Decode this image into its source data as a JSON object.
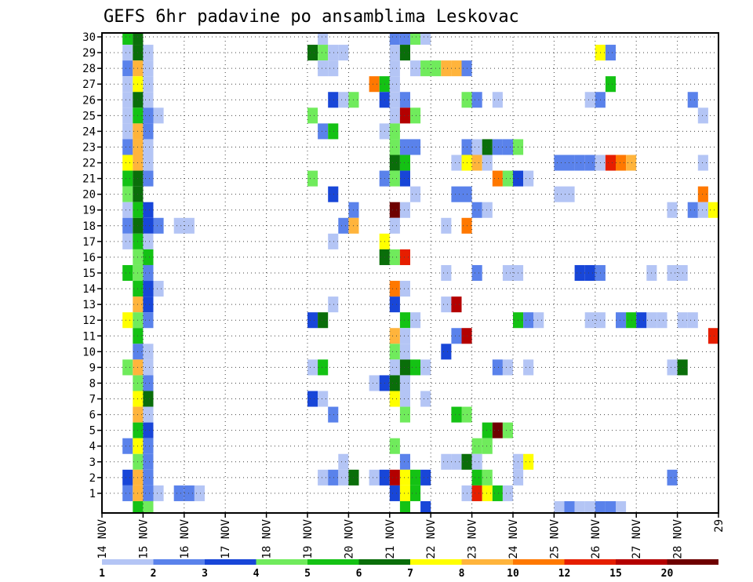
{
  "chart_data": {
    "type": "heatmap",
    "title": "GEFS 6hr padavine po ansamblima Leskovac",
    "xlabel": "",
    "ylabel": "",
    "x_tick_labels": [
      "14 NOV",
      "15 NOV",
      "16 NOV",
      "17 NOV",
      "18 NOV",
      "19 NOV",
      "20 NOV",
      "21 NOV",
      "22 NOV",
      "23 NOV",
      "24 NOV",
      "25 NOV",
      "26 NOV",
      "27 NOV",
      "28 NOV",
      "29"
    ],
    "y_tick_labels": [
      "1",
      "2",
      "3",
      "4",
      "5",
      "6",
      "7",
      "8",
      "9",
      "10",
      "11",
      "12",
      "13",
      "14",
      "15",
      "16",
      "17",
      "18",
      "19",
      "20",
      "21",
      "22",
      "23",
      "24",
      "25",
      "26",
      "27",
      "28",
      "29",
      "30"
    ],
    "x_range_days": [
      14,
      29
    ],
    "x_step_days": 0.25,
    "y_range": [
      0,
      30
    ],
    "grid": "dotted",
    "legend": {
      "position": "bottom",
      "labels": [
        "1",
        "2",
        "3",
        "4",
        "5",
        "6",
        "7",
        "8",
        "10",
        "12",
        "15",
        "20"
      ],
      "colors": [
        "#b4c5f5",
        "#5a82eb",
        "#1846d8",
        "#70eb5c",
        "#14c214",
        "#0a6e0a",
        "#ffff00",
        "#ffb43c",
        "#ff7800",
        "#e61e00",
        "#b40000",
        "#6e0000"
      ]
    },
    "cells_note": "each cell: [day (14-29, step 0.25), member (0-30), colour class index 0-11]",
    "cells": [
      [
        14.5,
        30,
        4
      ],
      [
        14.75,
        30,
        5
      ],
      [
        19.25,
        30,
        0
      ],
      [
        21,
        30,
        1
      ],
      [
        21.25,
        30,
        1
      ],
      [
        21.5,
        30,
        3
      ],
      [
        21.75,
        30,
        0
      ],
      [
        14.5,
        29,
        0
      ],
      [
        14.75,
        29,
        5
      ],
      [
        15,
        29,
        0
      ],
      [
        19,
        29,
        5
      ],
      [
        19.25,
        29,
        3
      ],
      [
        19.5,
        29,
        0
      ],
      [
        19.75,
        29,
        0
      ],
      [
        21,
        29,
        0
      ],
      [
        21.25,
        29,
        5
      ],
      [
        26,
        29,
        6
      ],
      [
        26.25,
        29,
        1
      ],
      [
        29,
        29,
        2
      ],
      [
        14.5,
        28,
        1
      ],
      [
        14.75,
        28,
        7
      ],
      [
        15,
        28,
        0
      ],
      [
        19.25,
        28,
        0
      ],
      [
        19.5,
        28,
        0
      ],
      [
        21,
        28,
        0
      ],
      [
        21.5,
        28,
        0
      ],
      [
        21.75,
        28,
        3
      ],
      [
        22,
        28,
        3
      ],
      [
        22.25,
        28,
        7
      ],
      [
        22.5,
        28,
        7
      ],
      [
        22.75,
        28,
        1
      ],
      [
        14.5,
        27,
        0
      ],
      [
        14.75,
        27,
        6
      ],
      [
        15,
        27,
        0
      ],
      [
        20.5,
        27,
        8
      ],
      [
        20.75,
        27,
        4
      ],
      [
        21,
        27,
        0
      ],
      [
        26.25,
        27,
        4
      ],
      [
        14.5,
        26,
        0
      ],
      [
        14.75,
        26,
        5
      ],
      [
        15,
        26,
        0
      ],
      [
        19.5,
        26,
        2
      ],
      [
        19.75,
        26,
        0
      ],
      [
        20,
        26,
        3
      ],
      [
        20.75,
        26,
        2
      ],
      [
        21,
        26,
        0
      ],
      [
        21.25,
        26,
        1
      ],
      [
        22.75,
        26,
        3
      ],
      [
        23,
        26,
        1
      ],
      [
        23.5,
        26,
        0
      ],
      [
        25.75,
        26,
        0
      ],
      [
        26,
        26,
        1
      ],
      [
        28.25,
        26,
        1
      ],
      [
        14.5,
        25,
        0
      ],
      [
        14.75,
        25,
        4
      ],
      [
        15,
        25,
        1
      ],
      [
        15.25,
        25,
        0
      ],
      [
        19,
        25,
        3
      ],
      [
        21,
        25,
        0
      ],
      [
        21.25,
        25,
        10
      ],
      [
        21.5,
        25,
        3
      ],
      [
        28.5,
        25,
        0
      ],
      [
        14.5,
        24,
        0
      ],
      [
        14.75,
        24,
        7
      ],
      [
        15,
        24,
        1
      ],
      [
        19.25,
        24,
        1
      ],
      [
        19.5,
        24,
        4
      ],
      [
        20.75,
        24,
        0
      ],
      [
        21,
        24,
        3
      ],
      [
        14.5,
        23,
        1
      ],
      [
        14.75,
        23,
        7
      ],
      [
        15,
        23,
        0
      ],
      [
        21,
        23,
        3
      ],
      [
        21.25,
        23,
        1
      ],
      [
        21.5,
        23,
        1
      ],
      [
        22.75,
        23,
        1
      ],
      [
        23,
        23,
        0
      ],
      [
        23.25,
        23,
        5
      ],
      [
        23.5,
        23,
        1
      ],
      [
        23.75,
        23,
        1
      ],
      [
        24,
        23,
        3
      ],
      [
        14.5,
        22,
        6
      ],
      [
        14.75,
        22,
        7
      ],
      [
        15,
        22,
        0
      ],
      [
        21,
        22,
        5
      ],
      [
        21.25,
        22,
        4
      ],
      [
        22.5,
        22,
        0
      ],
      [
        22.75,
        22,
        6
      ],
      [
        23,
        22,
        7
      ],
      [
        23.25,
        22,
        0
      ],
      [
        25,
        22,
        1
      ],
      [
        25.25,
        22,
        1
      ],
      [
        25.5,
        22,
        1
      ],
      [
        25.75,
        22,
        1
      ],
      [
        26,
        22,
        0
      ],
      [
        26.25,
        22,
        9
      ],
      [
        26.5,
        22,
        8
      ],
      [
        26.75,
        22,
        7
      ],
      [
        28.5,
        22,
        0
      ],
      [
        14.5,
        21,
        4
      ],
      [
        14.75,
        21,
        5
      ],
      [
        15,
        21,
        1
      ],
      [
        19,
        21,
        3
      ],
      [
        20.75,
        21,
        1
      ],
      [
        21,
        21,
        3
      ],
      [
        21.25,
        21,
        2
      ],
      [
        23.5,
        21,
        8
      ],
      [
        23.75,
        21,
        3
      ],
      [
        24,
        21,
        2
      ],
      [
        24.25,
        21,
        0
      ],
      [
        14.5,
        20,
        3
      ],
      [
        14.75,
        20,
        5
      ],
      [
        19.5,
        20,
        2
      ],
      [
        21.5,
        20,
        0
      ],
      [
        22.5,
        20,
        1
      ],
      [
        22.75,
        20,
        1
      ],
      [
        25,
        20,
        0
      ],
      [
        25.25,
        20,
        0
      ],
      [
        28.5,
        20,
        8
      ],
      [
        14.5,
        19,
        0
      ],
      [
        14.75,
        19,
        4
      ],
      [
        15,
        19,
        2
      ],
      [
        20,
        19,
        1
      ],
      [
        21,
        19,
        11
      ],
      [
        21.25,
        19,
        0
      ],
      [
        23,
        19,
        1
      ],
      [
        23.25,
        19,
        0
      ],
      [
        27.75,
        19,
        0
      ],
      [
        28.25,
        19,
        1
      ],
      [
        28.5,
        19,
        0
      ],
      [
        28.75,
        19,
        6
      ],
      [
        14.5,
        18,
        1
      ],
      [
        14.75,
        18,
        5
      ],
      [
        15,
        18,
        2
      ],
      [
        15.25,
        18,
        1
      ],
      [
        15.75,
        18,
        0
      ],
      [
        16,
        18,
        0
      ],
      [
        19.75,
        18,
        1
      ],
      [
        20,
        18,
        7
      ],
      [
        21,
        18,
        0
      ],
      [
        22.25,
        18,
        0
      ],
      [
        22.75,
        18,
        8
      ],
      [
        14.5,
        17,
        0
      ],
      [
        14.75,
        17,
        4
      ],
      [
        15,
        17,
        0
      ],
      [
        19.5,
        17,
        0
      ],
      [
        20.75,
        17,
        6
      ],
      [
        14.75,
        16,
        3
      ],
      [
        15,
        16,
        4
      ],
      [
        20.75,
        16,
        5
      ],
      [
        21,
        16,
        3
      ],
      [
        21.25,
        16,
        9
      ],
      [
        14.5,
        15,
        4
      ],
      [
        14.75,
        15,
        3
      ],
      [
        15,
        15,
        1
      ],
      [
        22.25,
        15,
        0
      ],
      [
        23,
        15,
        1
      ],
      [
        23.75,
        15,
        0
      ],
      [
        24,
        15,
        0
      ],
      [
        25.5,
        15,
        2
      ],
      [
        25.75,
        15,
        2
      ],
      [
        26,
        15,
        1
      ],
      [
        27.25,
        15,
        0
      ],
      [
        27.75,
        15,
        0
      ],
      [
        28,
        15,
        0
      ],
      [
        14.75,
        14,
        4
      ],
      [
        15,
        14,
        2
      ],
      [
        15.25,
        14,
        0
      ],
      [
        21,
        14,
        8
      ],
      [
        21.25,
        14,
        0
      ],
      [
        14.75,
        13,
        7
      ],
      [
        15,
        13,
        2
      ],
      [
        19.5,
        13,
        0
      ],
      [
        21,
        13,
        2
      ],
      [
        22.25,
        13,
        0
      ],
      [
        22.5,
        13,
        10
      ],
      [
        14.5,
        12,
        6
      ],
      [
        14.75,
        12,
        3
      ],
      [
        15,
        12,
        1
      ],
      [
        19,
        12,
        2
      ],
      [
        19.25,
        12,
        5
      ],
      [
        21.25,
        12,
        4
      ],
      [
        21.5,
        12,
        0
      ],
      [
        24,
        12,
        4
      ],
      [
        24.25,
        12,
        1
      ],
      [
        24.5,
        12,
        0
      ],
      [
        25.75,
        12,
        0
      ],
      [
        26,
        12,
        0
      ],
      [
        26.5,
        12,
        1
      ],
      [
        26.75,
        12,
        4
      ],
      [
        27,
        12,
        2
      ],
      [
        27.25,
        12,
        0
      ],
      [
        27.5,
        12,
        0
      ],
      [
        28,
        12,
        0
      ],
      [
        28.25,
        12,
        0
      ],
      [
        14.75,
        11,
        4
      ],
      [
        21,
        11,
        7
      ],
      [
        21.25,
        11,
        0
      ],
      [
        22.5,
        11,
        1
      ],
      [
        22.75,
        11,
        10
      ],
      [
        28.75,
        11,
        9
      ],
      [
        29,
        11,
        2
      ],
      [
        14.75,
        10,
        1
      ],
      [
        15,
        10,
        0
      ],
      [
        21,
        10,
        3
      ],
      [
        21.25,
        10,
        0
      ],
      [
        22.25,
        10,
        2
      ],
      [
        14.5,
        9,
        3
      ],
      [
        14.75,
        9,
        7
      ],
      [
        15,
        9,
        0
      ],
      [
        19,
        9,
        0
      ],
      [
        19.25,
        9,
        4
      ],
      [
        21,
        9,
        0
      ],
      [
        21.25,
        9,
        5
      ],
      [
        21.5,
        9,
        4
      ],
      [
        21.75,
        9,
        0
      ],
      [
        23.5,
        9,
        1
      ],
      [
        23.75,
        9,
        0
      ],
      [
        24.25,
        9,
        0
      ],
      [
        27.75,
        9,
        0
      ],
      [
        28,
        9,
        5
      ],
      [
        14.75,
        8,
        3
      ],
      [
        15,
        8,
        1
      ],
      [
        20.5,
        8,
        0
      ],
      [
        20.75,
        8,
        2
      ],
      [
        21,
        8,
        5
      ],
      [
        21.25,
        8,
        0
      ],
      [
        14.75,
        7,
        6
      ],
      [
        15,
        7,
        5
      ],
      [
        19,
        7,
        2
      ],
      [
        19.25,
        7,
        0
      ],
      [
        21,
        7,
        6
      ],
      [
        21.25,
        7,
        0
      ],
      [
        21.75,
        7,
        0
      ],
      [
        14.75,
        6,
        7
      ],
      [
        15,
        6,
        0
      ],
      [
        19.5,
        6,
        1
      ],
      [
        21.25,
        6,
        3
      ],
      [
        22.5,
        6,
        4
      ],
      [
        22.75,
        6,
        3
      ],
      [
        14.75,
        5,
        4
      ],
      [
        15,
        5,
        2
      ],
      [
        23.25,
        5,
        4
      ],
      [
        23.5,
        5,
        11
      ],
      [
        23.75,
        5,
        3
      ],
      [
        14.5,
        4,
        1
      ],
      [
        14.75,
        4,
        6
      ],
      [
        15,
        4,
        1
      ],
      [
        21,
        4,
        3
      ],
      [
        23,
        4,
        3
      ],
      [
        23.25,
        4,
        3
      ],
      [
        14.75,
        3,
        3
      ],
      [
        15,
        3,
        1
      ],
      [
        19.75,
        3,
        0
      ],
      [
        21.25,
        3,
        1
      ],
      [
        22.25,
        3,
        0
      ],
      [
        22.5,
        3,
        0
      ],
      [
        22.75,
        3,
        5
      ],
      [
        23,
        3,
        0
      ],
      [
        24,
        3,
        0
      ],
      [
        24.25,
        3,
        6
      ],
      [
        14.5,
        2,
        2
      ],
      [
        14.75,
        2,
        7
      ],
      [
        15,
        2,
        1
      ],
      [
        19.25,
        2,
        0
      ],
      [
        19.5,
        2,
        1
      ],
      [
        19.75,
        2,
        0
      ],
      [
        20,
        2,
        5
      ],
      [
        20.5,
        2,
        0
      ],
      [
        20.75,
        2,
        2
      ],
      [
        21,
        2,
        10
      ],
      [
        21.25,
        2,
        6
      ],
      [
        21.5,
        2,
        4
      ],
      [
        21.75,
        2,
        2
      ],
      [
        23,
        2,
        4
      ],
      [
        23.25,
        2,
        3
      ],
      [
        24,
        2,
        0
      ],
      [
        27.75,
        2,
        1
      ],
      [
        14.5,
        1,
        1
      ],
      [
        14.75,
        1,
        7
      ],
      [
        15,
        1,
        1
      ],
      [
        15.25,
        1,
        0
      ],
      [
        15.75,
        1,
        1
      ],
      [
        16,
        1,
        1
      ],
      [
        16.25,
        1,
        0
      ],
      [
        21,
        1,
        2
      ],
      [
        21.25,
        1,
        6
      ],
      [
        21.5,
        1,
        4
      ],
      [
        22.75,
        1,
        0
      ],
      [
        23,
        1,
        9
      ],
      [
        23.25,
        1,
        6
      ],
      [
        23.5,
        1,
        4
      ],
      [
        23.75,
        1,
        0
      ],
      [
        14.75,
        0,
        4
      ],
      [
        15,
        0,
        3
      ],
      [
        21.25,
        0,
        4
      ],
      [
        21.75,
        0,
        2
      ],
      [
        25,
        0,
        0
      ],
      [
        25.25,
        0,
        1
      ],
      [
        25.5,
        0,
        0
      ],
      [
        25.75,
        0,
        0
      ],
      [
        26,
        0,
        1
      ],
      [
        26.25,
        0,
        1
      ],
      [
        26.5,
        0,
        0
      ]
    ]
  }
}
